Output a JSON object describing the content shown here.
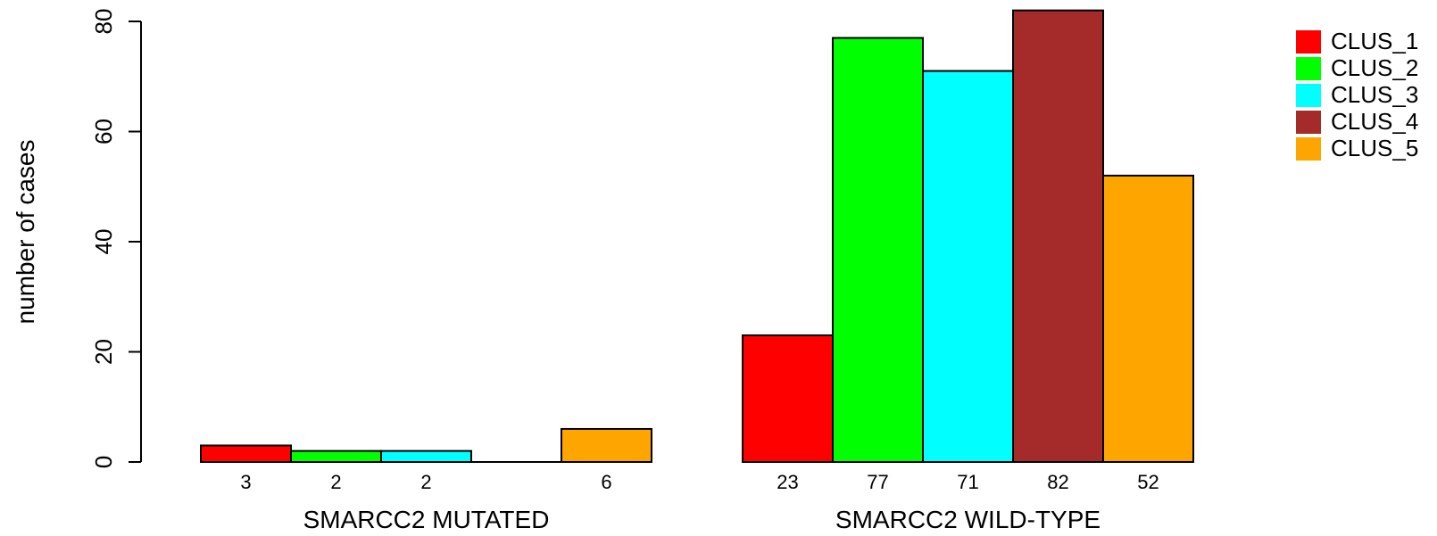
{
  "chart_data": {
    "type": "bar",
    "ylabel": "number of cases",
    "ylim": [
      0,
      80
    ],
    "yticks": [
      0,
      20,
      40,
      60,
      80
    ],
    "groups": [
      "SMARCC2 MUTATED",
      "SMARCC2 WILD-TYPE"
    ],
    "series": [
      {
        "name": "CLUS_1",
        "color": "#ff0000",
        "values": [
          3,
          23
        ],
        "labels": [
          "3",
          "23"
        ]
      },
      {
        "name": "CLUS_2",
        "color": "#00ff00",
        "values": [
          2,
          77
        ],
        "labels": [
          "2",
          "77"
        ]
      },
      {
        "name": "CLUS_3",
        "color": "#00ffff",
        "values": [
          2,
          71
        ],
        "labels": [
          "2",
          "71"
        ]
      },
      {
        "name": "CLUS_4",
        "color": "#a52a2a",
        "values": [
          0,
          82
        ],
        "labels": [
          "",
          "82"
        ]
      },
      {
        "name": "CLUS_5",
        "color": "#ffa500",
        "values": [
          6,
          52
        ],
        "labels": [
          "6",
          "52"
        ]
      }
    ],
    "legend_position": "top-right",
    "grid": false
  }
}
